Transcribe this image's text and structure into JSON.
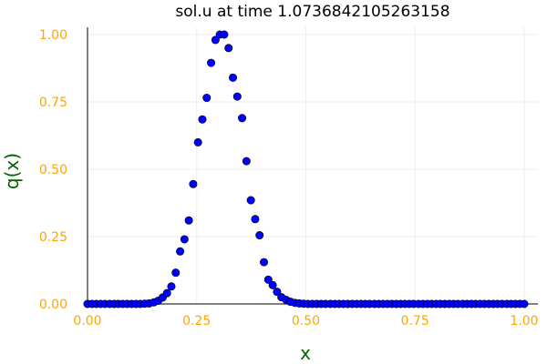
{
  "chart_data": {
    "type": "scatter",
    "title": "sol.u at time 1.0736842105263158",
    "xlabel": "x",
    "ylabel": "q(x)",
    "xlim": [
      0.0,
      1.0
    ],
    "ylim": [
      0.0,
      1.0
    ],
    "xticks": [
      "0.00",
      "0.25",
      "0.50",
      "0.75",
      "1.00"
    ],
    "yticks": [
      "0.00",
      "0.25",
      "0.50",
      "0.75",
      "1.00"
    ],
    "grid": true,
    "legend": "none",
    "colors": {
      "marker": "#0000ff",
      "marker_edge": "#000000",
      "tick_labels": "#ffa500",
      "axis_labels": "#006400",
      "grid": "#eeeeee",
      "axes": "#000000"
    },
    "series": [
      {
        "x": [
          0.0,
          0.01,
          0.02,
          0.03,
          0.04,
          0.051,
          0.061,
          0.071,
          0.081,
          0.091,
          0.101,
          0.111,
          0.121,
          0.131,
          0.141,
          0.152,
          0.162,
          0.172,
          0.182,
          0.192,
          0.202,
          0.212,
          0.222,
          0.232,
          0.242,
          0.253,
          0.263,
          0.273,
          0.283,
          0.293,
          0.303,
          0.313,
          0.323,
          0.333,
          0.343,
          0.354,
          0.364,
          0.374,
          0.384,
          0.394,
          0.404,
          0.414,
          0.424,
          0.434,
          0.444,
          0.455,
          0.465,
          0.475,
          0.485,
          0.495,
          0.505,
          0.515,
          0.525,
          0.535,
          0.545,
          0.556,
          0.566,
          0.576,
          0.586,
          0.596,
          0.606,
          0.616,
          0.626,
          0.636,
          0.646,
          0.657,
          0.667,
          0.677,
          0.687,
          0.697,
          0.707,
          0.717,
          0.727,
          0.737,
          0.747,
          0.758,
          0.768,
          0.778,
          0.788,
          0.798,
          0.808,
          0.818,
          0.828,
          0.838,
          0.848,
          0.859,
          0.869,
          0.879,
          0.889,
          0.899,
          0.909,
          0.919,
          0.929,
          0.939,
          0.949,
          0.96,
          0.97,
          0.98,
          0.99,
          1.0
        ],
        "y": [
          0.0,
          0.0,
          0.0,
          0.0,
          0.0,
          0.0,
          0.0,
          0.0,
          0.0,
          0.0,
          0.0,
          0.0,
          0.0,
          0.001,
          0.002,
          0.006,
          0.012,
          0.024,
          0.04,
          0.065,
          0.116,
          0.195,
          0.24,
          0.31,
          0.445,
          0.6,
          0.685,
          0.765,
          0.895,
          0.98,
          1.0,
          1.0,
          0.95,
          0.84,
          0.77,
          0.69,
          0.53,
          0.385,
          0.315,
          0.255,
          0.155,
          0.09,
          0.07,
          0.045,
          0.025,
          0.015,
          0.008,
          0.004,
          0.002,
          0.001,
          0.0,
          0.0,
          0.0,
          0.0,
          0.0,
          0.0,
          0.0,
          0.0,
          0.0,
          0.0,
          0.0,
          0.0,
          0.0,
          0.0,
          0.0,
          0.0,
          0.0,
          0.0,
          0.0,
          0.0,
          0.0,
          0.0,
          0.0,
          0.0,
          0.0,
          0.0,
          0.0,
          0.0,
          0.0,
          0.0,
          0.0,
          0.0,
          0.0,
          0.0,
          0.0,
          0.0,
          0.0,
          0.0,
          0.0,
          0.0,
          0.0,
          0.0,
          0.0,
          0.0,
          0.0,
          0.0,
          0.0,
          0.0,
          0.0,
          0.0
        ]
      }
    ]
  }
}
